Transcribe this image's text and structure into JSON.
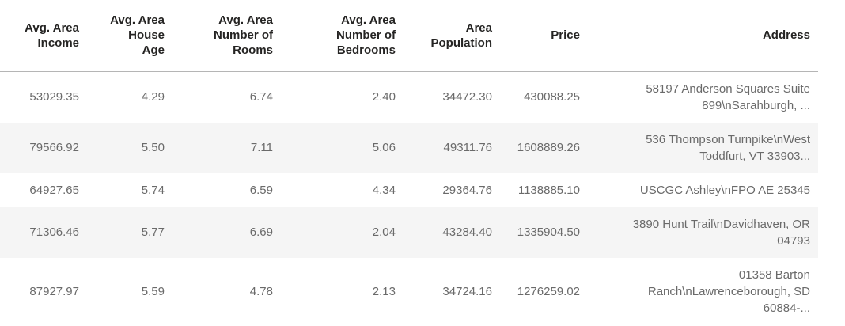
{
  "theme": {
    "header_text_color": "#252423",
    "body_text_color": "#6a6a6a",
    "stripe_color": "#f5f5f5",
    "divider_color": "#b5b5b5",
    "background_color": "#ffffff"
  },
  "table": {
    "columns": [
      {
        "key": "avg-area-income",
        "label": "Avg. Area Income"
      },
      {
        "key": "avg-area-house-age",
        "label": "Avg. Area House Age"
      },
      {
        "key": "avg-area-number-of-rooms",
        "label": "Avg. Area Number of Rooms"
      },
      {
        "key": "avg-area-number-of-bedrooms",
        "label": "Avg. Area Number of Bedrooms"
      },
      {
        "key": "area-population",
        "label": "Area Population"
      },
      {
        "key": "price",
        "label": "Price"
      },
      {
        "key": "address",
        "label": "Address"
      }
    ],
    "rows": [
      [
        "53029.35",
        "4.29",
        "6.74",
        "2.40",
        "34472.30",
        "430088.25",
        "58197 Anderson Squares Suite 899\\nSarahburgh, ..."
      ],
      [
        "79566.92",
        "5.50",
        "7.11",
        "5.06",
        "49311.76",
        "1608889.26",
        "536 Thompson Turnpike\\nWest Toddfurt, VT 33903..."
      ],
      [
        "64927.65",
        "5.74",
        "6.59",
        "4.34",
        "29364.76",
        "1138885.10",
        "USCGC Ashley\\nFPO AE 25345"
      ],
      [
        "71306.46",
        "5.77",
        "6.69",
        "2.04",
        "43284.40",
        "1335904.50",
        "3890 Hunt Trail\\nDavidhaven, OR 04793"
      ],
      [
        "87927.97",
        "5.59",
        "4.78",
        "2.13",
        "34724.16",
        "1276259.02",
        "01358 Barton Ranch\\nLawrenceborough, SD 60884-..."
      ]
    ]
  }
}
